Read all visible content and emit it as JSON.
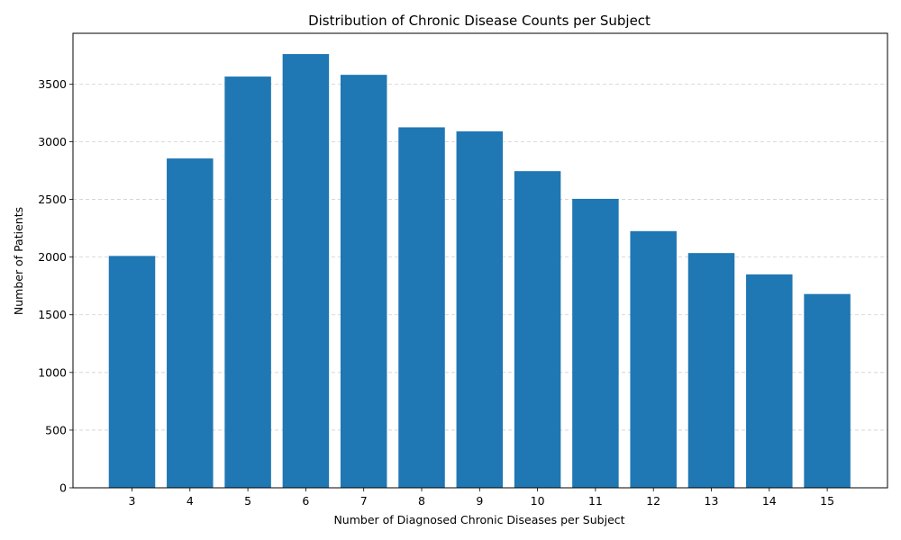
{
  "chart_data": {
    "type": "bar",
    "title": "Distribution of Chronic Disease Counts per Subject",
    "xlabel": "Number of Diagnosed Chronic Diseases per Subject",
    "ylabel": "Number of Patients",
    "categories": [
      "3",
      "4",
      "5",
      "6",
      "7",
      "8",
      "9",
      "10",
      "11",
      "12",
      "13",
      "14",
      "15"
    ],
    "values": [
      2010,
      2855,
      3565,
      3760,
      3580,
      3125,
      3090,
      2745,
      2505,
      2225,
      2035,
      1850,
      1680
    ],
    "ylim": [
      0,
      3940
    ],
    "yticks": [
      0,
      500,
      1000,
      1500,
      2000,
      2500,
      3000,
      3500
    ],
    "grid": "y-dashed",
    "bar_color": "#1f77b4"
  }
}
